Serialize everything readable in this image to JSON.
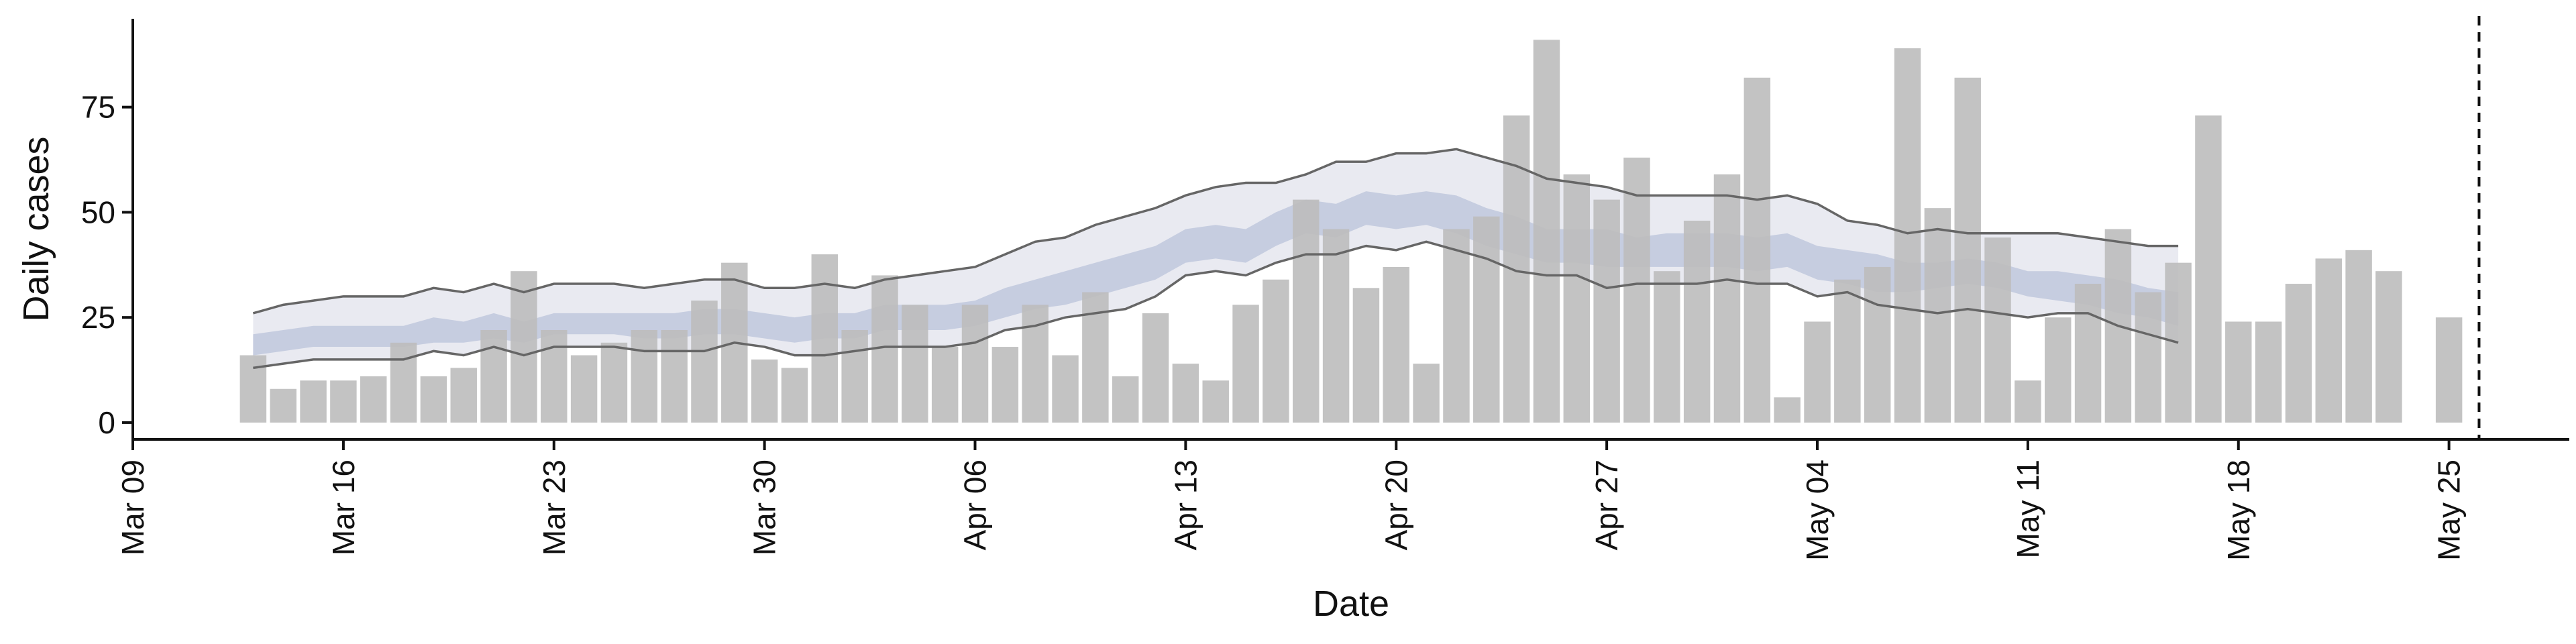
{
  "chart_data": {
    "type": "bar",
    "title": "",
    "xlabel": "Date",
    "ylabel": "Daily cases",
    "ylim": [
      -4,
      96
    ],
    "xlim": [
      "2020-03-09",
      "2020-05-29"
    ],
    "yticks": [
      0,
      25,
      50,
      75
    ],
    "xticks": [
      {
        "date": "2020-03-09",
        "label": "Mar 09"
      },
      {
        "date": "2020-03-16",
        "label": "Mar 16"
      },
      {
        "date": "2020-03-23",
        "label": "Mar 23"
      },
      {
        "date": "2020-03-30",
        "label": "Mar 30"
      },
      {
        "date": "2020-04-06",
        "label": "Apr 06"
      },
      {
        "date": "2020-04-13",
        "label": "Apr 13"
      },
      {
        "date": "2020-04-20",
        "label": "Apr 20"
      },
      {
        "date": "2020-04-27",
        "label": "Apr 27"
      },
      {
        "date": "2020-05-04",
        "label": "May 04"
      },
      {
        "date": "2020-05-11",
        "label": "May 11"
      },
      {
        "date": "2020-05-18",
        "label": "May 18"
      },
      {
        "date": "2020-05-25",
        "label": "May 25"
      }
    ],
    "grid": false,
    "legend": "none",
    "colors": {
      "bars": "#bdbdbd",
      "outer_band": "#e9eaf1",
      "inner_band": "#c6cde0",
      "interval_lines": "#666666",
      "axis": "#111111",
      "vline": "#111111"
    },
    "bars": {
      "x": [
        "2020-03-13",
        "2020-03-14",
        "2020-03-15",
        "2020-03-16",
        "2020-03-17",
        "2020-03-18",
        "2020-03-19",
        "2020-03-20",
        "2020-03-21",
        "2020-03-22",
        "2020-03-23",
        "2020-03-24",
        "2020-03-25",
        "2020-03-26",
        "2020-03-27",
        "2020-03-28",
        "2020-03-29",
        "2020-03-30",
        "2020-03-31",
        "2020-04-01",
        "2020-04-02",
        "2020-04-03",
        "2020-04-04",
        "2020-04-05",
        "2020-04-06",
        "2020-04-07",
        "2020-04-08",
        "2020-04-09",
        "2020-04-10",
        "2020-04-11",
        "2020-04-12",
        "2020-04-13",
        "2020-04-14",
        "2020-04-15",
        "2020-04-16",
        "2020-04-17",
        "2020-04-18",
        "2020-04-19",
        "2020-04-20",
        "2020-04-21",
        "2020-04-22",
        "2020-04-23",
        "2020-04-24",
        "2020-04-25",
        "2020-04-26",
        "2020-04-27",
        "2020-04-28",
        "2020-04-29",
        "2020-04-30",
        "2020-05-01",
        "2020-05-02",
        "2020-05-03",
        "2020-05-04",
        "2020-05-05",
        "2020-05-06",
        "2020-05-07",
        "2020-05-08",
        "2020-05-09",
        "2020-05-10",
        "2020-05-11",
        "2020-05-12",
        "2020-05-13",
        "2020-05-14",
        "2020-05-15",
        "2020-05-16",
        "2020-05-17",
        "2020-05-18",
        "2020-05-19",
        "2020-05-20",
        "2020-05-21",
        "2020-05-22",
        "2020-05-23",
        "2020-05-25"
      ],
      "values": [
        16,
        8,
        10,
        10,
        11,
        19,
        11,
        13,
        22,
        36,
        22,
        16,
        19,
        22,
        22,
        29,
        38,
        15,
        13,
        40,
        22,
        35,
        28,
        18,
        28,
        18,
        28,
        16,
        31,
        11,
        26,
        14,
        10,
        28,
        34,
        53,
        46,
        32,
        37,
        14,
        46,
        49,
        73,
        91,
        59,
        53,
        63,
        36,
        48,
        59,
        82,
        6,
        24,
        34,
        37,
        89,
        51,
        82,
        44,
        10,
        25,
        33,
        46,
        31,
        38,
        73,
        24,
        24,
        33,
        39,
        41,
        36,
        25
      ]
    },
    "nowcast": {
      "x": [
        "2020-03-13",
        "2020-03-14",
        "2020-03-15",
        "2020-03-16",
        "2020-03-17",
        "2020-03-18",
        "2020-03-19",
        "2020-03-20",
        "2020-03-21",
        "2020-03-22",
        "2020-03-23",
        "2020-03-24",
        "2020-03-25",
        "2020-03-26",
        "2020-03-27",
        "2020-03-28",
        "2020-03-29",
        "2020-03-30",
        "2020-03-31",
        "2020-04-01",
        "2020-04-02",
        "2020-04-03",
        "2020-04-04",
        "2020-04-05",
        "2020-04-06",
        "2020-04-07",
        "2020-04-08",
        "2020-04-09",
        "2020-04-10",
        "2020-04-11",
        "2020-04-12",
        "2020-04-13",
        "2020-04-14",
        "2020-04-15",
        "2020-04-16",
        "2020-04-17",
        "2020-04-18",
        "2020-04-19",
        "2020-04-20",
        "2020-04-21",
        "2020-04-22",
        "2020-04-23",
        "2020-04-24",
        "2020-04-25",
        "2020-04-26",
        "2020-04-27",
        "2020-04-28",
        "2020-04-29",
        "2020-04-30",
        "2020-05-01",
        "2020-05-02",
        "2020-05-03",
        "2020-05-04",
        "2020-05-05",
        "2020-05-06",
        "2020-05-07",
        "2020-05-08",
        "2020-05-09",
        "2020-05-10",
        "2020-05-11",
        "2020-05-12",
        "2020-05-13",
        "2020-05-14",
        "2020-05-15",
        "2020-05-16"
      ],
      "outer_upper": [
        26,
        28,
        29,
        30,
        30,
        30,
        32,
        31,
        33,
        31,
        33,
        33,
        33,
        32,
        33,
        34,
        34,
        32,
        32,
        33,
        32,
        34,
        35,
        36,
        37,
        40,
        43,
        44,
        47,
        49,
        51,
        54,
        56,
        57,
        57,
        59,
        62,
        62,
        64,
        64,
        65,
        63,
        61,
        58,
        57,
        56,
        54,
        54,
        54,
        54,
        53,
        54,
        52,
        48,
        47,
        45,
        46,
        45,
        45,
        45,
        45,
        44,
        43,
        42,
        42
      ],
      "outer_lower": [
        13,
        14,
        15,
        15,
        15,
        15,
        17,
        16,
        18,
        16,
        18,
        18,
        18,
        17,
        17,
        17,
        19,
        18,
        16,
        16,
        17,
        18,
        18,
        18,
        19,
        22,
        23,
        25,
        26,
        27,
        30,
        35,
        36,
        35,
        38,
        40,
        40,
        42,
        41,
        43,
        41,
        39,
        36,
        35,
        35,
        32,
        33,
        33,
        33,
        34,
        33,
        33,
        30,
        31,
        28,
        27,
        26,
        27,
        26,
        25,
        26,
        26,
        23,
        21,
        19
      ],
      "inner_upper": [
        21,
        22,
        23,
        23,
        23,
        23,
        25,
        24,
        26,
        24,
        26,
        26,
        26,
        26,
        26,
        27,
        27,
        26,
        25,
        26,
        26,
        28,
        28,
        28,
        29,
        32,
        34,
        36,
        38,
        40,
        42,
        46,
        47,
        46,
        50,
        53,
        52,
        55,
        54,
        55,
        54,
        51,
        49,
        46,
        46,
        46,
        44,
        45,
        45,
        45,
        44,
        45,
        42,
        41,
        40,
        38,
        38,
        39,
        38,
        36,
        36,
        35,
        34,
        32,
        31
      ],
      "inner_lower": [
        16,
        17,
        18,
        18,
        18,
        18,
        19,
        19,
        20,
        19,
        21,
        21,
        21,
        20,
        20,
        21,
        21,
        20,
        19,
        20,
        20,
        22,
        22,
        22,
        23,
        25,
        27,
        28,
        30,
        32,
        34,
        38,
        39,
        38,
        42,
        45,
        44,
        47,
        46,
        47,
        45,
        42,
        40,
        38,
        38,
        37,
        37,
        37,
        37,
        37,
        36,
        37,
        34,
        33,
        31,
        31,
        32,
        33,
        32,
        30,
        29,
        28,
        26,
        25,
        23
      ]
    },
    "vline": {
      "x": "2020-05-26",
      "style": "dashed"
    }
  }
}
